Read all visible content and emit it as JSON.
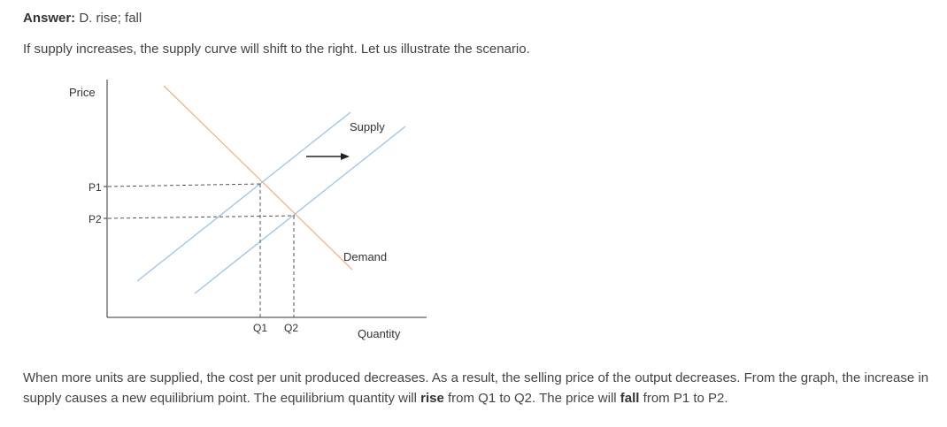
{
  "answer": {
    "label": "Answer:",
    "text": " D. rise; fall"
  },
  "intro": "If supply increases, the supply curve will shift to the right. Let us illustrate the scenario.",
  "graph": {
    "price_axis_label": "Price",
    "quantity_axis_label": "Quantity",
    "supply_label": "Supply",
    "demand_label": "Demand",
    "price_levels": [
      "P1",
      "P2"
    ],
    "quantity_levels": [
      "Q1",
      "Q2"
    ],
    "colors": {
      "supply": "#9dc3e6",
      "demand": "#f4b183",
      "axis": "#333333",
      "guide": "#555555",
      "arrow": "#222222"
    }
  },
  "explanation": {
    "part1": "When more units are supplied, the cost per unit produced decreases. As a result, the selling price of the output decreases. From the graph, the increase in supply causes a new equilibrium point. The equilibrium quantity will ",
    "bold1": "rise",
    "part2": " from Q1 to Q2. The price will ",
    "bold2": "fall",
    "part3": " from P1 to P2."
  }
}
